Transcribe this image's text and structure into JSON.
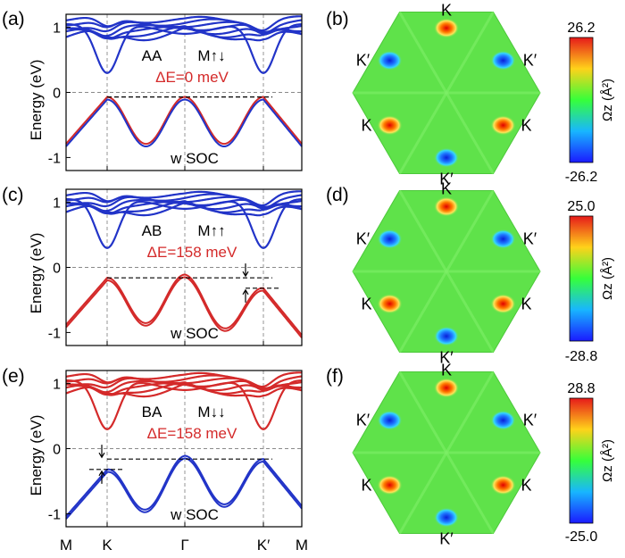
{
  "chart_data": {
    "type": "line",
    "description_free": true,
    "band_panels": [
      {
        "label": "(a)",
        "stacking": "AA",
        "magnetic": "M↑↓",
        "gap_text": "ΔE=0 meV",
        "soc": "w SOC",
        "ylabel": "Energy (eV)",
        "ylim": [
          -1.2,
          1.2
        ],
        "yticks": [
          -1,
          0,
          1
        ],
        "ytick_labels": [
          "-1",
          "0",
          "1"
        ],
        "valence_color": "#d42a2a",
        "conduction_color": "#2234c8",
        "gap_meV": 0,
        "top_of_valence_eV": {
          "K": -0.07,
          "Gamma": -0.07,
          "Kp": -0.07
        }
      },
      {
        "label": "(c)",
        "stacking": "AB",
        "magnetic": "M↑↑",
        "gap_text": "ΔE=158 meV",
        "soc": "w SOC",
        "ylabel": "Energy (eV)",
        "ylim": [
          -1.2,
          1.2
        ],
        "yticks": [
          -1,
          0,
          1
        ],
        "ytick_labels": [
          "-1",
          "0",
          "1"
        ],
        "valence_color": "#d42a2a",
        "conduction_color": "#2234c8",
        "gap_meV": 158,
        "top_of_valence_eV": {
          "K": -0.16,
          "Gamma": -0.11,
          "Kp": -0.32
        }
      },
      {
        "label": "(e)",
        "stacking": "BA",
        "magnetic": "M↓↓",
        "gap_text": "ΔE=158 meV",
        "soc": "w SOC",
        "ylabel": "Energy (eV)",
        "ylim": [
          -1.2,
          1.2
        ],
        "yticks": [
          -1,
          0,
          1
        ],
        "ytick_labels": [
          "-1",
          "0",
          "1"
        ],
        "valence_color": "#2234c8",
        "conduction_color": "#d42a2a",
        "gap_meV": 158,
        "top_of_valence_eV": {
          "K": -0.32,
          "Gamma": -0.11,
          "Kp": -0.16
        }
      }
    ],
    "x_ticks": [
      "M",
      "K",
      "Γ",
      "K′",
      "M"
    ],
    "berry_panels": [
      {
        "label": "(b)",
        "cmax": "26.2",
        "cmin": "-26.2",
        "cbar_label": "Ωz (Å²)",
        "points": {
          "top": "K",
          "upper_left": "K′",
          "upper_right": "K′",
          "lower_left": "K",
          "lower_right": "K",
          "bottom": "K′"
        }
      },
      {
        "label": "(d)",
        "cmax": "25.0",
        "cmin": "-28.8",
        "cbar_label": "Ωz (Å²)",
        "points": {
          "top": "K",
          "upper_left": "K′",
          "upper_right": "K′",
          "lower_left": "K",
          "lower_right": "K",
          "bottom": "K′"
        }
      },
      {
        "label": "(f)",
        "cmax": "28.8",
        "cmin": "-25.0",
        "cbar_label": "Ωz (Å²)",
        "points": {
          "top": "K",
          "upper_left": "K′",
          "upper_right": "K′",
          "lower_left": "K",
          "lower_right": "K",
          "bottom": "K′"
        }
      }
    ]
  }
}
